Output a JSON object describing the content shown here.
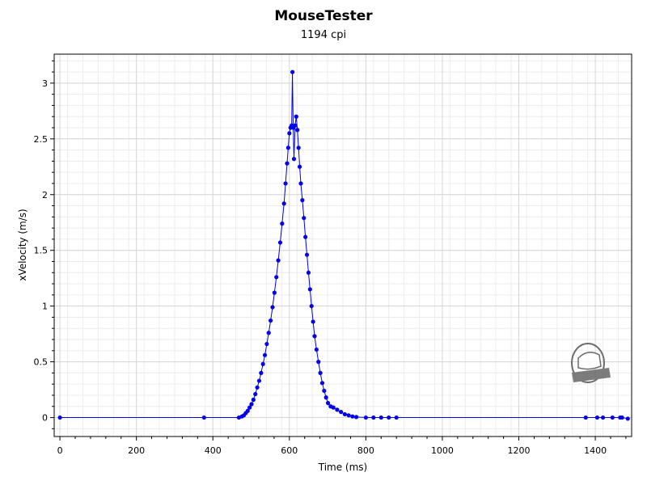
{
  "chart_data": {
    "type": "scatter",
    "title": "MouseTester",
    "subtitle": "1194 cpi",
    "xlabel": "Time (ms)",
    "ylabel": "xVelocity (m/s)",
    "xlim": [
      -15,
      1495
    ],
    "ylim": [
      -0.17,
      3.26
    ],
    "x_ticks": [
      0,
      200,
      400,
      600,
      800,
      1000,
      1200,
      1400
    ],
    "y_ticks": [
      0,
      0.5,
      1,
      1.5,
      2,
      2.5,
      3
    ],
    "grid": true,
    "series_color": "#0000ee",
    "points": [
      [
        0,
        0
      ],
      [
        377,
        0
      ],
      [
        468,
        0
      ],
      [
        476,
        0.01
      ],
      [
        481,
        0.02
      ],
      [
        486,
        0.04
      ],
      [
        491,
        0.06
      ],
      [
        496,
        0.09
      ],
      [
        501,
        0.12
      ],
      [
        506,
        0.16
      ],
      [
        511,
        0.21
      ],
      [
        516,
        0.27
      ],
      [
        521,
        0.33
      ],
      [
        526,
        0.4
      ],
      [
        531,
        0.48
      ],
      [
        536,
        0.56
      ],
      [
        541,
        0.66
      ],
      [
        546,
        0.76
      ],
      [
        551,
        0.87
      ],
      [
        556,
        0.99
      ],
      [
        561,
        1.12
      ],
      [
        566,
        1.26
      ],
      [
        571,
        1.41
      ],
      [
        576,
        1.57
      ],
      [
        581,
        1.74
      ],
      [
        586,
        1.92
      ],
      [
        590,
        2.1
      ],
      [
        594,
        2.28
      ],
      [
        597,
        2.42
      ],
      [
        600,
        2.55
      ],
      [
        603,
        2.6
      ],
      [
        606,
        2.62
      ],
      [
        608,
        3.1
      ],
      [
        610,
        2.6
      ],
      [
        612,
        2.32
      ],
      [
        615,
        2.62
      ],
      [
        618,
        2.7
      ],
      [
        621,
        2.58
      ],
      [
        624,
        2.42
      ],
      [
        627,
        2.25
      ],
      [
        630,
        2.1
      ],
      [
        634,
        1.95
      ],
      [
        638,
        1.79
      ],
      [
        642,
        1.62
      ],
      [
        646,
        1.46
      ],
      [
        650,
        1.3
      ],
      [
        654,
        1.15
      ],
      [
        658,
        1.0
      ],
      [
        662,
        0.86
      ],
      [
        666,
        0.73
      ],
      [
        671,
        0.61
      ],
      [
        676,
        0.5
      ],
      [
        681,
        0.4
      ],
      [
        686,
        0.31
      ],
      [
        691,
        0.24
      ],
      [
        696,
        0.18
      ],
      [
        701,
        0.13
      ],
      [
        708,
        0.1
      ],
      [
        715,
        0.09
      ],
      [
        725,
        0.07
      ],
      [
        735,
        0.05
      ],
      [
        745,
        0.03
      ],
      [
        755,
        0.02
      ],
      [
        765,
        0.01
      ],
      [
        775,
        0.005
      ],
      [
        800,
        0
      ],
      [
        820,
        0
      ],
      [
        840,
        0
      ],
      [
        860,
        0
      ],
      [
        880,
        0
      ],
      [
        1375,
        0
      ],
      [
        1405,
        0
      ],
      [
        1420,
        0
      ],
      [
        1445,
        0
      ],
      [
        1465,
        0
      ],
      [
        1470,
        0
      ],
      [
        1485,
        -0.01
      ]
    ],
    "watermark": "Tech Legend"
  }
}
